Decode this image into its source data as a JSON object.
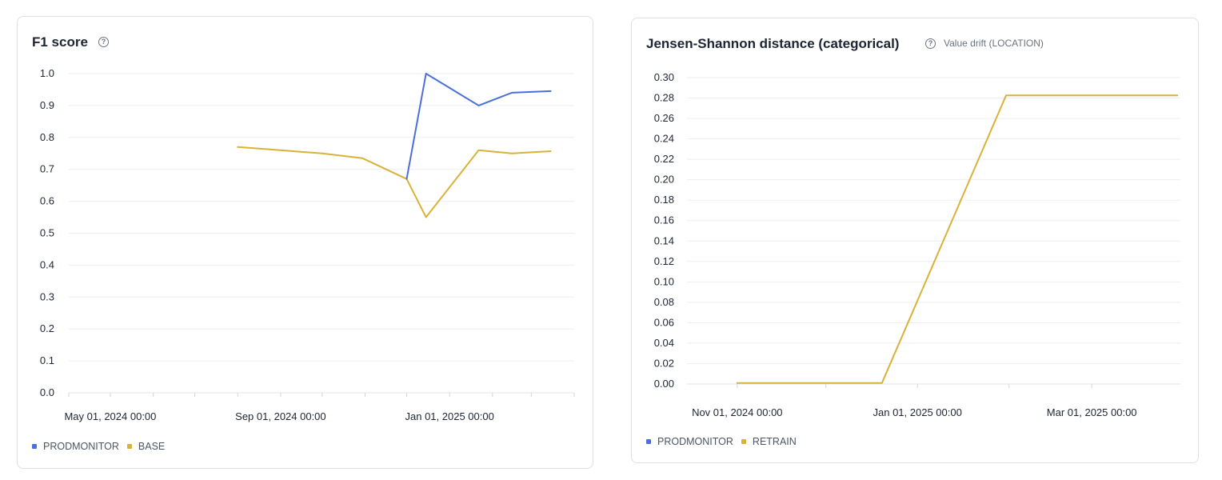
{
  "charts": [
    {
      "title": "F1 score",
      "subtitle": "",
      "help_icon": "help-circle-icon",
      "legend": [
        {
          "name": "PRODMONITOR",
          "color": "#4a6fdc"
        },
        {
          "name": "BASE",
          "color": "#d9b23a"
        }
      ]
    },
    {
      "title": "Jensen-Shannon distance (categorical)",
      "subtitle": "Value drift (LOCATION)",
      "help_icon": "help-circle-icon",
      "legend": [
        {
          "name": "PRODMONITOR",
          "color": "#4a6fdc"
        },
        {
          "name": "RETRAIN",
          "color": "#d9b23a"
        }
      ]
    }
  ],
  "chart_data": [
    {
      "type": "line",
      "title": "F1 score",
      "xlabel": "",
      "ylabel": "",
      "ylim": [
        0,
        1.0
      ],
      "yticks": [
        "0.0",
        "0.1",
        "0.2",
        "0.3",
        "0.4",
        "0.5",
        "0.6",
        "0.7",
        "0.8",
        "0.9",
        "1.0"
      ],
      "xlim": [
        "2024-04-01",
        "2025-04-01"
      ],
      "xticks": [
        {
          "date": "2024-05-01",
          "label": "May 01, 2024 00:00"
        },
        {
          "date": "2024-09-01",
          "label": "Sep 01, 2024 00:00"
        },
        {
          "date": "2025-01-01",
          "label": "Jan 01, 2025 00:00"
        }
      ],
      "grid": true,
      "legend_position": "bottom-left",
      "series": [
        {
          "name": "PRODMONITOR",
          "color": "#4a6fdc",
          "points": [
            {
              "x": "2024-12-01",
              "y": 0.67
            },
            {
              "x": "2024-12-15",
              "y": 1.0
            },
            {
              "x": "2025-01-22",
              "y": 0.9
            },
            {
              "x": "2025-02-15",
              "y": 0.94
            },
            {
              "x": "2025-03-15",
              "y": 0.945
            }
          ]
        },
        {
          "name": "BASE",
          "color": "#d9b23a",
          "points": [
            {
              "x": "2024-08-01",
              "y": 0.77
            },
            {
              "x": "2024-09-01",
              "y": 0.76
            },
            {
              "x": "2024-10-01",
              "y": 0.75
            },
            {
              "x": "2024-10-30",
              "y": 0.735
            },
            {
              "x": "2024-12-01",
              "y": 0.67
            },
            {
              "x": "2024-12-15",
              "y": 0.55
            },
            {
              "x": "2025-01-22",
              "y": 0.76
            },
            {
              "x": "2025-02-15",
              "y": 0.75
            },
            {
              "x": "2025-03-15",
              "y": 0.757
            }
          ]
        }
      ]
    },
    {
      "type": "line",
      "title": "Jensen-Shannon distance (categorical)",
      "xlabel": "",
      "ylabel": "",
      "ylim": [
        0,
        0.3
      ],
      "yticks": [
        "0.00",
        "0.02",
        "0.04",
        "0.06",
        "0.08",
        "0.10",
        "0.12",
        "0.14",
        "0.16",
        "0.18",
        "0.20",
        "0.22",
        "0.24",
        "0.26",
        "0.28",
        "0.30"
      ],
      "xlim": [
        "2024-10-15",
        "2025-03-31"
      ],
      "xticks": [
        {
          "date": "2024-11-01",
          "label": "Nov 01, 2024 00:00"
        },
        {
          "date": "2025-01-01",
          "label": "Jan 01, 2025 00:00"
        },
        {
          "date": "2025-03-01",
          "label": "Mar 01, 2025 00:00"
        }
      ],
      "grid": true,
      "legend_position": "bottom-left",
      "series": [
        {
          "name": "RETRAIN",
          "color": "#d9b23a",
          "points": [
            {
              "x": "2024-11-01",
              "y": 0.001
            },
            {
              "x": "2024-12-20",
              "y": 0.001
            },
            {
              "x": "2025-01-31",
              "y": 0.2825
            },
            {
              "x": "2025-03-30",
              "y": 0.2825
            }
          ]
        }
      ]
    }
  ]
}
